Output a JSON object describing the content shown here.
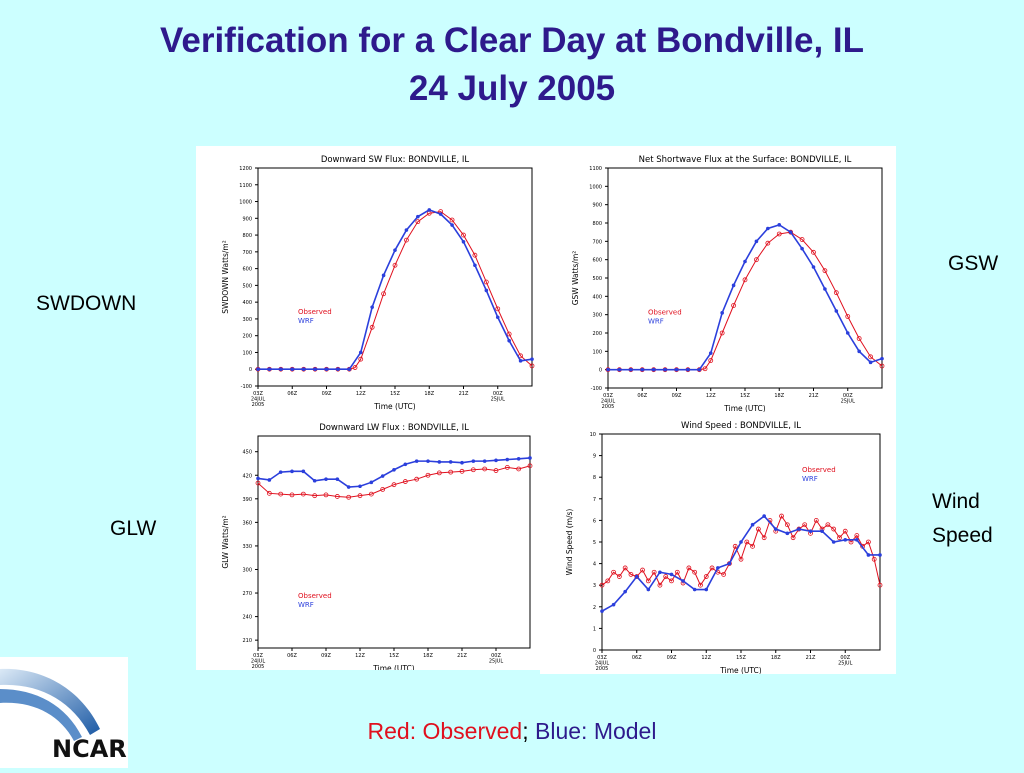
{
  "slide": {
    "title_line1": "Verification for a Clear Day at Bondville, IL",
    "title_line2": "24 July 2005",
    "labels": {
      "swdown": "SWDOWN",
      "gsw": "GSW",
      "glw": "GLW",
      "wind_line1": "Wind",
      "wind_line2": "Speed"
    },
    "footer": {
      "observed": "Red: Observed",
      "sep": ";",
      "model": " Blue: Model"
    },
    "logo_text": "NCAR",
    "colors": {
      "observed": "#e0101e",
      "model": "#2b3fdc",
      "title": "#2e1a8c",
      "background": "#ccffff"
    }
  },
  "chart_data": [
    {
      "id": "swdown",
      "type": "line",
      "title": "Downward SW Flux: BONDVILLE, IL",
      "xlabel": "Time (UTC)",
      "ylabel": "SWDOWN   Watts/m²",
      "xlim": [
        3,
        27
      ],
      "ylim": [
        -100,
        1200
      ],
      "yticks": [
        -100,
        0,
        100,
        200,
        300,
        400,
        500,
        600,
        700,
        800,
        900,
        1000,
        1100,
        1200
      ],
      "xtick_labels": [
        "03Z\n24JUL\n2005",
        "06Z",
        "09Z",
        "12Z",
        "15Z",
        "18Z",
        "21Z",
        "00Z\n25JUL"
      ],
      "legend": [
        "Observed",
        "WRF"
      ],
      "legend_position": "center-left",
      "series": [
        {
          "name": "Observed",
          "style": "circles",
          "x": [
            3,
            4,
            5,
            6,
            7,
            8,
            9,
            10,
            11,
            11.5,
            12,
            13,
            14,
            15,
            16,
            17,
            18,
            19,
            20,
            21,
            22,
            23,
            24,
            25,
            26,
            27
          ],
          "y": [
            0,
            0,
            0,
            0,
            0,
            0,
            0,
            0,
            0,
            10,
            60,
            250,
            450,
            620,
            770,
            880,
            930,
            940,
            890,
            800,
            680,
            520,
            360,
            210,
            80,
            20
          ]
        },
        {
          "name": "WRF",
          "style": "line-markers",
          "x": [
            3,
            4,
            5,
            6,
            7,
            8,
            9,
            10,
            11,
            12,
            13,
            14,
            15,
            16,
            17,
            18,
            19,
            20,
            21,
            22,
            23,
            24,
            25,
            26,
            27
          ],
          "y": [
            0,
            0,
            0,
            0,
            0,
            0,
            0,
            0,
            0,
            100,
            370,
            560,
            710,
            830,
            910,
            950,
            925,
            860,
            760,
            620,
            470,
            310,
            170,
            50,
            60
          ]
        }
      ]
    },
    {
      "id": "gsw",
      "type": "line",
      "title": "Net Shortwave Flux at the Surface: BONDVILLE, IL",
      "xlabel": "Time (UTC)",
      "ylabel": "GSW   Watts/m²",
      "xlim": [
        3,
        27
      ],
      "ylim": [
        -100,
        1100
      ],
      "yticks": [
        -100,
        0,
        100,
        200,
        300,
        400,
        500,
        600,
        700,
        800,
        900,
        1000,
        1100
      ],
      "xtick_labels": [
        "03Z\n24JUL\n2005",
        "06Z",
        "09Z",
        "12Z",
        "15Z",
        "18Z",
        "21Z",
        "00Z\n25JUL"
      ],
      "legend": [
        "Observed",
        "WRF"
      ],
      "legend_position": "center-left",
      "series": [
        {
          "name": "Observed",
          "style": "circles",
          "x": [
            3,
            4,
            5,
            6,
            7,
            8,
            9,
            10,
            11,
            11.5,
            12,
            13,
            14,
            15,
            16,
            17,
            18,
            19,
            20,
            21,
            22,
            23,
            24,
            25,
            26,
            27
          ],
          "y": [
            0,
            0,
            0,
            0,
            0,
            0,
            0,
            0,
            0,
            5,
            50,
            200,
            350,
            490,
            600,
            690,
            740,
            750,
            710,
            640,
            540,
            420,
            290,
            170,
            70,
            20
          ]
        },
        {
          "name": "WRF",
          "style": "line-markers",
          "x": [
            3,
            4,
            5,
            6,
            7,
            8,
            9,
            10,
            11,
            12,
            13,
            14,
            15,
            16,
            17,
            18,
            19,
            20,
            21,
            22,
            23,
            24,
            25,
            26,
            27
          ],
          "y": [
            0,
            0,
            0,
            0,
            0,
            0,
            0,
            0,
            0,
            90,
            310,
            460,
            590,
            700,
            770,
            790,
            750,
            660,
            560,
            440,
            320,
            200,
            100,
            40,
            60
          ]
        }
      ]
    },
    {
      "id": "glw",
      "type": "line",
      "title": "Downward LW Flux : BONDVILLE, IL",
      "xlabel": "Time (UTC)",
      "ylabel": "GLW   Watts/m²",
      "xlim": [
        3,
        27
      ],
      "ylim": [
        200,
        470
      ],
      "yticks": [
        210,
        240,
        270,
        300,
        330,
        360,
        390,
        420,
        450
      ],
      "xtick_labels": [
        "03Z\n24JUL\n2005",
        "06Z",
        "09Z",
        "12Z",
        "15Z",
        "18Z",
        "21Z",
        "00Z\n25JUL"
      ],
      "legend": [
        "Observed",
        "WRF"
      ],
      "legend_position": "bottom-left",
      "series": [
        {
          "name": "Observed",
          "style": "circles",
          "x": [
            3,
            4,
            5,
            6,
            7,
            8,
            9,
            10,
            11,
            12,
            13,
            14,
            15,
            16,
            17,
            18,
            19,
            20,
            21,
            22,
            23,
            24,
            25,
            26,
            27
          ],
          "y": [
            410,
            397,
            396,
            395,
            396,
            394,
            395,
            393,
            392,
            394,
            396,
            402,
            408,
            412,
            415,
            420,
            423,
            424,
            425,
            427,
            428,
            426,
            430,
            428,
            432
          ]
        },
        {
          "name": "WRF",
          "style": "line-markers",
          "x": [
            3,
            4,
            5,
            6,
            7,
            8,
            9,
            10,
            11,
            12,
            13,
            14,
            15,
            16,
            17,
            18,
            19,
            20,
            21,
            22,
            23,
            24,
            25,
            26,
            27
          ],
          "y": [
            416,
            414,
            424,
            425,
            425,
            413,
            415,
            415,
            405,
            406,
            411,
            419,
            427,
            434,
            438,
            438,
            437,
            437,
            436,
            438,
            438,
            439,
            440,
            441,
            442
          ]
        }
      ]
    },
    {
      "id": "wind",
      "type": "line",
      "title": "Wind Speed : BONDVILLE, IL",
      "xlabel": "Time (UTC)",
      "ylabel": "Wind Speed  (m/s)",
      "xlim": [
        3,
        27
      ],
      "ylim": [
        0,
        10
      ],
      "yticks": [
        0,
        1,
        2,
        3,
        4,
        5,
        6,
        7,
        8,
        9,
        10
      ],
      "xtick_labels": [
        "03Z\n24JUL\n2005",
        "06Z",
        "09Z",
        "12Z",
        "15Z",
        "18Z",
        "21Z",
        "00Z\n25JUL"
      ],
      "legend": [
        "Observed",
        "WRF"
      ],
      "legend_position": "top-right",
      "series": [
        {
          "name": "Observed",
          "style": "circles",
          "x": [
            3,
            3.5,
            4,
            4.5,
            5,
            5.5,
            6,
            6.5,
            7,
            7.5,
            8,
            8.5,
            9,
            9.5,
            10,
            10.5,
            11,
            11.5,
            12,
            12.5,
            13,
            13.5,
            14,
            14.5,
            15,
            15.5,
            16,
            16.5,
            17,
            17.5,
            18,
            18.5,
            19,
            19.5,
            20,
            20.5,
            21,
            21.5,
            22,
            22.5,
            23,
            23.5,
            24,
            24.5,
            25,
            25.5,
            26,
            26.5,
            27
          ],
          "y": [
            3.0,
            3.2,
            3.6,
            3.4,
            3.8,
            3.5,
            3.4,
            3.7,
            3.2,
            3.6,
            3.0,
            3.4,
            3.2,
            3.6,
            3.1,
            3.8,
            3.6,
            3.0,
            3.4,
            3.8,
            3.6,
            3.5,
            4.0,
            4.8,
            4.2,
            5.0,
            4.8,
            5.6,
            5.2,
            6.0,
            5.5,
            6.2,
            5.8,
            5.2,
            5.6,
            5.8,
            5.4,
            6.0,
            5.6,
            5.8,
            5.6,
            5.2,
            5.5,
            5.0,
            5.3,
            4.8,
            5.0,
            4.2,
            3.0
          ]
        },
        {
          "name": "WRF",
          "style": "line-markers",
          "x": [
            3,
            4,
            5,
            6,
            7,
            8,
            9,
            10,
            11,
            12,
            13,
            14,
            15,
            16,
            17,
            18,
            19,
            20,
            21,
            22,
            23,
            24,
            25,
            26,
            27
          ],
          "y": [
            1.8,
            2.1,
            2.7,
            3.4,
            2.8,
            3.6,
            3.5,
            3.2,
            2.8,
            2.8,
            3.8,
            4.0,
            5.0,
            5.8,
            6.2,
            5.6,
            5.4,
            5.6,
            5.5,
            5.5,
            5.0,
            5.1,
            5.1,
            4.4,
            4.4
          ]
        }
      ]
    }
  ]
}
